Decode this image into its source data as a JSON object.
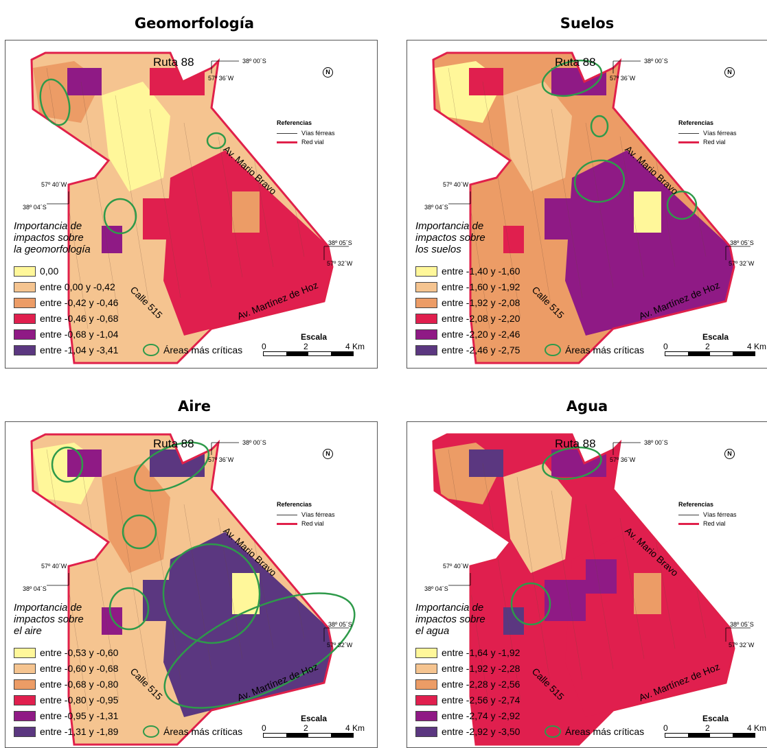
{
  "panels": [
    {
      "title": "Geomorfología",
      "legend_title": [
        "Importancia de",
        "impactos sobre",
        "la geomorfología"
      ],
      "classes": [
        {
          "label": "0,00",
          "color": "#fff79a"
        },
        {
          "label": "entre 0,00 y -0,42",
          "color": "#f5c490"
        },
        {
          "label": "entre -0,42 y -0,46",
          "color": "#ec9c66"
        },
        {
          "label": "entre -0,46 y -0,68",
          "color": "#e01f4e"
        },
        {
          "label": "entre -0,68 y -1,04",
          "color": "#8f1a85"
        },
        {
          "label": "entre -1,04 y -3,41",
          "color": "#5b3780"
        }
      ],
      "fills": [
        "#f5c490",
        "#ec9c66",
        "#e01f4e",
        "#e01f4e",
        "#8f1a85",
        "#fff79a"
      ]
    },
    {
      "title": "Suelos",
      "legend_title": [
        "Importancia de",
        "impactos sobre",
        "los suelos"
      ],
      "classes": [
        {
          "label": "entre -1,40 y -1,60",
          "color": "#fff79a"
        },
        {
          "label": "entre -1,60 y -1,92",
          "color": "#f5c490"
        },
        {
          "label": "entre -1,92 y -2,08",
          "color": "#ec9c66"
        },
        {
          "label": "entre -2,08 y -2,20",
          "color": "#e01f4e"
        },
        {
          "label": "entre -2,20 y -2,46",
          "color": "#8f1a85"
        },
        {
          "label": "entre -2,46 y -2,75",
          "color": "#5b3780"
        }
      ],
      "fills": [
        "#ec9c66",
        "#fff79a",
        "#8f1a85",
        "#8f1a85",
        "#e01f4e",
        "#f5c490"
      ]
    },
    {
      "title": "Aire",
      "legend_title": [
        "Importancia de",
        "impactos sobre",
        "el aire"
      ],
      "classes": [
        {
          "label": "entre -0,53 y -0,60",
          "color": "#fff79a"
        },
        {
          "label": "entre -0,60 y -0,68",
          "color": "#f5c490"
        },
        {
          "label": "entre -0,68 y -0,80",
          "color": "#ec9c66"
        },
        {
          "label": "entre -0,80 y -0,95",
          "color": "#e01f4e"
        },
        {
          "label": "entre -0,95 y -1,31",
          "color": "#8f1a85"
        },
        {
          "label": "entre -1,31 y -1,89",
          "color": "#5b3780"
        }
      ],
      "fills": [
        "#f5c490",
        "#fff79a",
        "#5b3780",
        "#5b3780",
        "#8f1a85",
        "#ec9c66"
      ]
    },
    {
      "title": "Agua",
      "legend_title": [
        "Importancia de",
        "impactos sobre",
        "el agua"
      ],
      "classes": [
        {
          "label": "entre -1,64 y -1,92",
          "color": "#fff79a"
        },
        {
          "label": "entre -1,92 y -2,28",
          "color": "#f5c490"
        },
        {
          "label": "entre -2,28 y -2,56",
          "color": "#ec9c66"
        },
        {
          "label": "entre -2,56 y -2,74",
          "color": "#e01f4e"
        },
        {
          "label": "entre -2,74 y -2,92",
          "color": "#8f1a85"
        },
        {
          "label": "entre -2,92 y -3,50",
          "color": "#5b3780"
        }
      ],
      "fills": [
        "#e01f4e",
        "#ec9c66",
        "#8f1a85",
        "#e01f4e",
        "#5b3780",
        "#f5c490"
      ]
    }
  ],
  "common": {
    "critical_label": "Áreas más críticas",
    "refs_title": "Referencias",
    "rail_label": "Vías férreas",
    "road_label": "Red vial",
    "scale_title": "Escala",
    "scale_0": "0",
    "scale_2": "2",
    "scale_4": "4 Km",
    "north": "N",
    "ruta": "Ruta 88",
    "mario": "Av. Mario Bravo",
    "hoz": "Av. Martínez de Hoz",
    "calle": "Calle 515",
    "c_38_00": "38º 00´S",
    "c_57_36": "57º 36´W",
    "c_57_40": "57º 40´W",
    "c_38_04": "38º 04´S",
    "c_38_05": "38º 05´S",
    "c_57_32": "57º 32´W"
  }
}
